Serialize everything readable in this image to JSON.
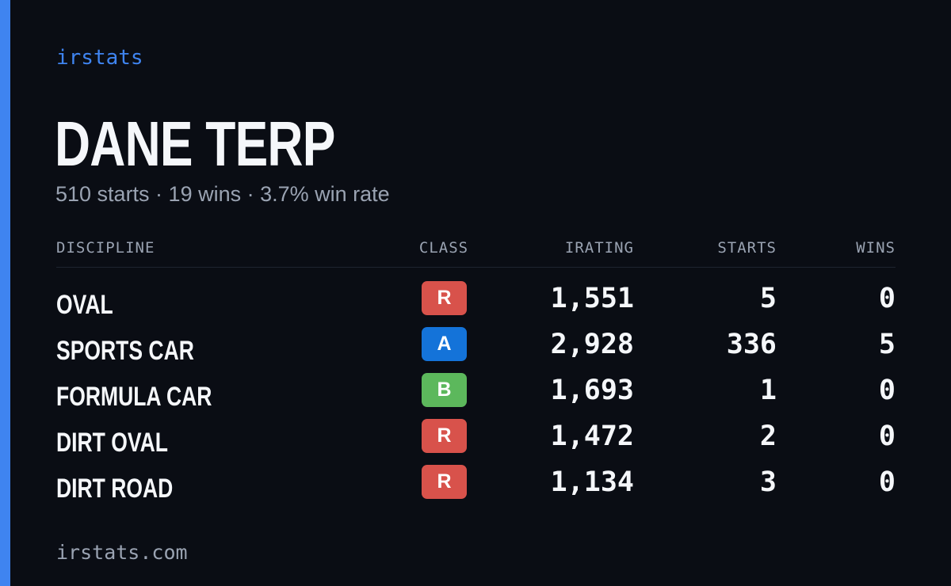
{
  "brand": "irstats",
  "driver": {
    "name": "DANE TERP",
    "summary": "510 starts · 19 wins · 3.7% win rate"
  },
  "table": {
    "headers": {
      "discipline": "DISCIPLINE",
      "class": "CLASS",
      "irating": "IRATING",
      "starts": "STARTS",
      "wins": "WINS"
    },
    "rows": [
      {
        "discipline": "OVAL",
        "class": "R",
        "class_color": "#d8524b",
        "irating": "1,551",
        "starts": "5",
        "wins": "0"
      },
      {
        "discipline": "SPORTS CAR",
        "class": "A",
        "class_color": "#1473d9",
        "irating": "2,928",
        "starts": "336",
        "wins": "5"
      },
      {
        "discipline": "FORMULA CAR",
        "class": "B",
        "class_color": "#5cb85c",
        "irating": "1,693",
        "starts": "1",
        "wins": "0"
      },
      {
        "discipline": "DIRT OVAL",
        "class": "R",
        "class_color": "#d8524b",
        "irating": "1,472",
        "starts": "2",
        "wins": "0"
      },
      {
        "discipline": "DIRT ROAD",
        "class": "R",
        "class_color": "#d8524b",
        "irating": "1,134",
        "starts": "3",
        "wins": "0"
      }
    ]
  },
  "footer": "irstats.com",
  "colors": {
    "accent": "#3f84f0",
    "background": "#0a0d14",
    "muted_text": "#9aa3b2"
  }
}
